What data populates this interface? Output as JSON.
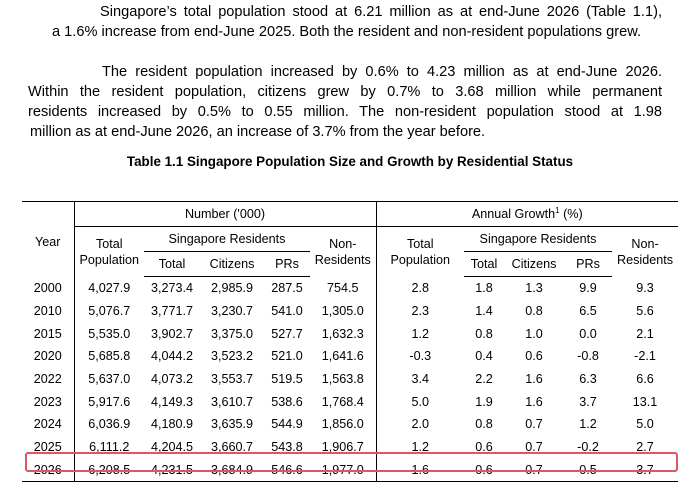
{
  "paragraph1": {
    "line1": "Singapore’s total population stood at 6.21 million as at end-June 2026 (Table 1.1),",
    "line2": "a 1.6% increase from end-June 2025. Both the resident and non-resident populations grew."
  },
  "paragraph2": {
    "line1": "The resident population increased by 0.6% to 4.23 million as at end-June 2026.",
    "line2": "Within the resident population, citizens grew by 0.7% to 3.68 million while permanent",
    "line3": "residents increased by 0.5% to 0.55 million. The non-resident population stood at 1.98",
    "line4": "million as at end-June 2026, an increase of 3.7% from the year before."
  },
  "table": {
    "caption": "Table 1.1  Singapore Population Size and Growth by Residential Status",
    "headers": {
      "year": "Year",
      "number_group": "Number ('000)",
      "growth_group": "Annual Growth",
      "growth_sup": "1",
      "growth_unit": " (%)",
      "total_population_1": "Total",
      "total_population_2": "Population",
      "singapore_residents": "Singapore Residents",
      "total": "Total",
      "citizens": "Citizens",
      "prs": "PRs",
      "non_residents_1": "Non-",
      "non_residents_2": "Residents"
    },
    "rows": [
      {
        "year": "2000",
        "n_total_pop": "4,027.9",
        "n_total": "3,273.4",
        "n_citizens": "2,985.9",
        "n_prs": "287.5",
        "n_nonres": "754.5",
        "g_total_pop": "2.8",
        "g_total": "1.8",
        "g_citizens": "1.3",
        "g_prs": "9.9",
        "g_nonres": "9.3"
      },
      {
        "year": "2010",
        "n_total_pop": "5,076.7",
        "n_total": "3,771.7",
        "n_citizens": "3,230.7",
        "n_prs": "541.0",
        "n_nonres": "1,305.0",
        "g_total_pop": "2.3",
        "g_total": "1.4",
        "g_citizens": "0.8",
        "g_prs": "6.5",
        "g_nonres": "5.6"
      },
      {
        "year": "2015",
        "n_total_pop": "5,535.0",
        "n_total": "3,902.7",
        "n_citizens": "3,375.0",
        "n_prs": "527.7",
        "n_nonres": "1,632.3",
        "g_total_pop": "1.2",
        "g_total": "0.8",
        "g_citizens": "1.0",
        "g_prs": "0.0",
        "g_nonres": "2.1"
      },
      {
        "year": "2020",
        "n_total_pop": "5,685.8",
        "n_total": "4,044.2",
        "n_citizens": "3,523.2",
        "n_prs": "521.0",
        "n_nonres": "1,641.6",
        "g_total_pop": "-0.3",
        "g_total": "0.4",
        "g_citizens": "0.6",
        "g_prs": "-0.8",
        "g_nonres": "-2.1"
      },
      {
        "year": "2022",
        "n_total_pop": "5,637.0",
        "n_total": "4,073.2",
        "n_citizens": "3,553.7",
        "n_prs": "519.5",
        "n_nonres": "1,563.8",
        "g_total_pop": "3.4",
        "g_total": "2.2",
        "g_citizens": "1.6",
        "g_prs": "6.3",
        "g_nonres": "6.6"
      },
      {
        "year": "2023",
        "n_total_pop": "5,917.6",
        "n_total": "4,149.3",
        "n_citizens": "3,610.7",
        "n_prs": "538.6",
        "n_nonres": "1,768.4",
        "g_total_pop": "5.0",
        "g_total": "1.9",
        "g_citizens": "1.6",
        "g_prs": "3.7",
        "g_nonres": "13.1"
      },
      {
        "year": "2024",
        "n_total_pop": "6,036.9",
        "n_total": "4,180.9",
        "n_citizens": "3,635.9",
        "n_prs": "544.9",
        "n_nonres": "1,856.0",
        "g_total_pop": "2.0",
        "g_total": "0.8",
        "g_citizens": "0.7",
        "g_prs": "1.2",
        "g_nonres": "5.0"
      },
      {
        "year": "2025",
        "n_total_pop": "6,111.2",
        "n_total": "4,204.5",
        "n_citizens": "3,660.7",
        "n_prs": "543.8",
        "n_nonres": "1,906.7",
        "g_total_pop": "1.2",
        "g_total": "0.6",
        "g_citizens": "0.7",
        "g_prs": "-0.2",
        "g_nonres": "2.7"
      },
      {
        "year": "2026",
        "n_total_pop": "6,208.5",
        "n_total": "4,231.5",
        "n_citizens": "3,684.9",
        "n_prs": "546.6",
        "n_nonres": "1,977.0",
        "g_total_pop": "1.6",
        "g_total": "0.6",
        "g_citizens": "0.7",
        "g_prs": "0.5",
        "g_nonres": "3.7"
      }
    ],
    "highlight_color": "#e0555f"
  }
}
